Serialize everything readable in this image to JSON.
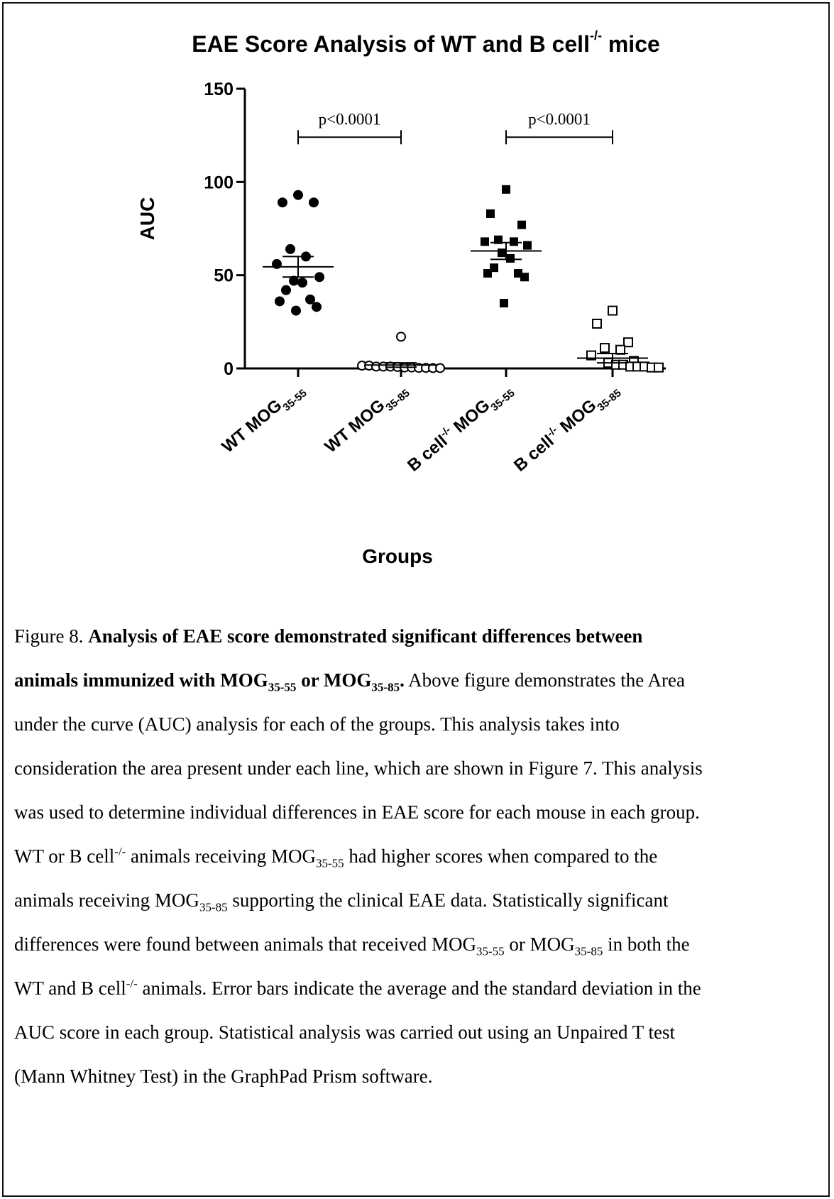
{
  "chart_data": {
    "type": "scatter",
    "title": "EAE Score Analysis of WT and B cell",
    "title_sup": "-/-",
    "title_end": " mice",
    "ylabel": "AUC",
    "xlabel": "Groups",
    "ylim": [
      0,
      150
    ],
    "yticks": [
      0,
      50,
      100,
      150
    ],
    "categories": [
      {
        "main": "WT MOG",
        "sub": "35-55"
      },
      {
        "main": "WT MOG",
        "sub": "35-85"
      },
      {
        "main": "B cell",
        "sup": "-/-",
        "after": " MOG",
        "sub": "35-55"
      },
      {
        "main": "B cell",
        "sup": "-/-",
        "after": " MOG",
        "sub": "35-85"
      }
    ],
    "series": [
      {
        "marker": "filled-circle",
        "values": [
          93,
          89,
          89,
          64,
          60,
          56,
          49,
          47,
          46,
          42,
          37,
          36,
          33,
          31
        ],
        "mean": 54.5,
        "err": 5.5
      },
      {
        "marker": "open-circle",
        "values": [
          17,
          1.5,
          1.5,
          1,
          1,
          1,
          0.8,
          0.5,
          0.5,
          0.3,
          0.3,
          0.2,
          0.2
        ],
        "mean": 1.8,
        "err": 1.2
      },
      {
        "marker": "filled-square",
        "values": [
          96,
          83,
          77,
          69,
          68,
          68,
          66,
          62,
          59,
          54,
          51,
          51,
          49,
          35
        ],
        "mean": 63,
        "err": 4.5
      },
      {
        "marker": "open-square",
        "values": [
          31,
          24,
          14,
          11,
          10,
          7,
          4,
          3,
          2,
          2,
          1,
          1,
          1,
          0.5,
          0.5
        ],
        "mean": 5.5,
        "err": 2.5
      }
    ],
    "annotations": [
      {
        "text": "p<0.0001",
        "from": 0,
        "to": 1,
        "y": 124
      },
      {
        "text": "p<0.0001",
        "from": 2,
        "to": 3,
        "y": 124
      }
    ]
  },
  "caption": {
    "label": "Figure 8. ",
    "bold_a": "Analysis of EAE score demonstrated significant differences between",
    "bold_b": "animals immunized with MOG",
    "sub1": "35-55",
    "bold_or": " or MOG",
    "sub2": "35-85",
    "bold_dot": ".",
    "t1": " Above figure demonstrates the Area",
    "line3": "under the curve (AUC) analysis for each of the groups. This analysis takes into",
    "line4": "consideration the area present under each line, which are shown in Figure 7. This analysis",
    "line5": "was used to determine individual differences in EAE score for each mouse in each group.",
    "l6a": "WT or B cell",
    "l6sup": "-/-",
    "l6b": " animals receiving MOG",
    "l6sub": "35-55",
    "l6c": " had higher scores when compared to the",
    "l7a": "animals receiving MOG",
    "l7sub": "35-85",
    "l7b": " supporting the clinical EAE data. Statistically significant",
    "l8a": "differences were found between animals that received MOG",
    "l8sub1": "35-55",
    "l8b": " or MOG",
    "l8sub2": "35-85",
    "l8c": " in both the",
    "l9a": "WT and B cell",
    "l9sup": "-/-",
    "l9b": " animals. Error bars indicate the average and the standard deviation in the",
    "line10": "AUC score in each group. Statistical analysis was carried out using an Unpaired T test",
    "line11": "(Mann Whitney Test) in the GraphPad Prism software."
  }
}
